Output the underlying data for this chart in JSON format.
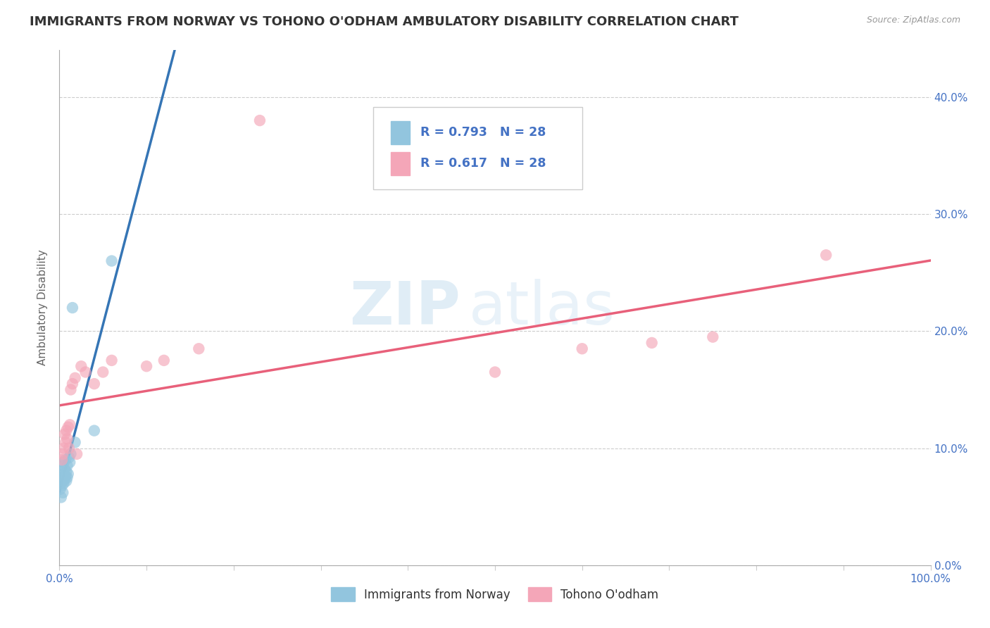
{
  "title": "IMMIGRANTS FROM NORWAY VS TOHONO O'ODHAM AMBULATORY DISABILITY CORRELATION CHART",
  "source": "Source: ZipAtlas.com",
  "ylabel": "Ambulatory Disability",
  "xlim": [
    0,
    1.0
  ],
  "ylim": [
    0,
    0.44
  ],
  "x_ticks": [
    0.0,
    0.1,
    0.2,
    0.3,
    0.4,
    0.5,
    0.6,
    0.7,
    0.8,
    0.9,
    1.0
  ],
  "y_ticks": [
    0.0,
    0.1,
    0.2,
    0.3,
    0.4
  ],
  "blue_R": 0.793,
  "blue_N": 28,
  "pink_R": 0.617,
  "pink_N": 28,
  "legend_label_blue": "Immigrants from Norway",
  "legend_label_pink": "Tohono O'odham",
  "watermark_bold": "ZIP",
  "watermark_light": "atlas",
  "blue_color": "#92c5de",
  "pink_color": "#f4a6b8",
  "blue_line_color": "#3575b5",
  "pink_line_color": "#e8607a",
  "background_color": "#ffffff",
  "grid_color": "#cccccc",
  "title_fontsize": 13,
  "axis_label_fontsize": 11,
  "tick_fontsize": 11,
  "tick_color": "#4472c4",
  "blue_scatter_x": [
    0.001,
    0.002,
    0.002,
    0.003,
    0.003,
    0.003,
    0.004,
    0.004,
    0.004,
    0.005,
    0.005,
    0.005,
    0.006,
    0.006,
    0.007,
    0.007,
    0.008,
    0.008,
    0.009,
    0.009,
    0.01,
    0.011,
    0.012,
    0.013,
    0.015,
    0.018,
    0.04,
    0.06
  ],
  "blue_scatter_y": [
    0.065,
    0.07,
    0.058,
    0.068,
    0.072,
    0.08,
    0.062,
    0.075,
    0.085,
    0.07,
    0.078,
    0.088,
    0.073,
    0.082,
    0.076,
    0.09,
    0.072,
    0.08,
    0.075,
    0.085,
    0.078,
    0.092,
    0.088,
    0.095,
    0.22,
    0.105,
    0.115,
    0.26
  ],
  "pink_scatter_x": [
    0.003,
    0.004,
    0.005,
    0.006,
    0.007,
    0.008,
    0.009,
    0.01,
    0.011,
    0.012,
    0.013,
    0.015,
    0.018,
    0.02,
    0.025,
    0.03,
    0.04,
    0.05,
    0.06,
    0.1,
    0.12,
    0.16,
    0.23,
    0.5,
    0.6,
    0.68,
    0.75,
    0.88
  ],
  "pink_scatter_y": [
    0.09,
    0.095,
    0.1,
    0.112,
    0.105,
    0.115,
    0.108,
    0.118,
    0.1,
    0.12,
    0.15,
    0.155,
    0.16,
    0.095,
    0.17,
    0.165,
    0.155,
    0.165,
    0.175,
    0.17,
    0.175,
    0.185,
    0.38,
    0.165,
    0.185,
    0.19,
    0.195,
    0.265
  ]
}
